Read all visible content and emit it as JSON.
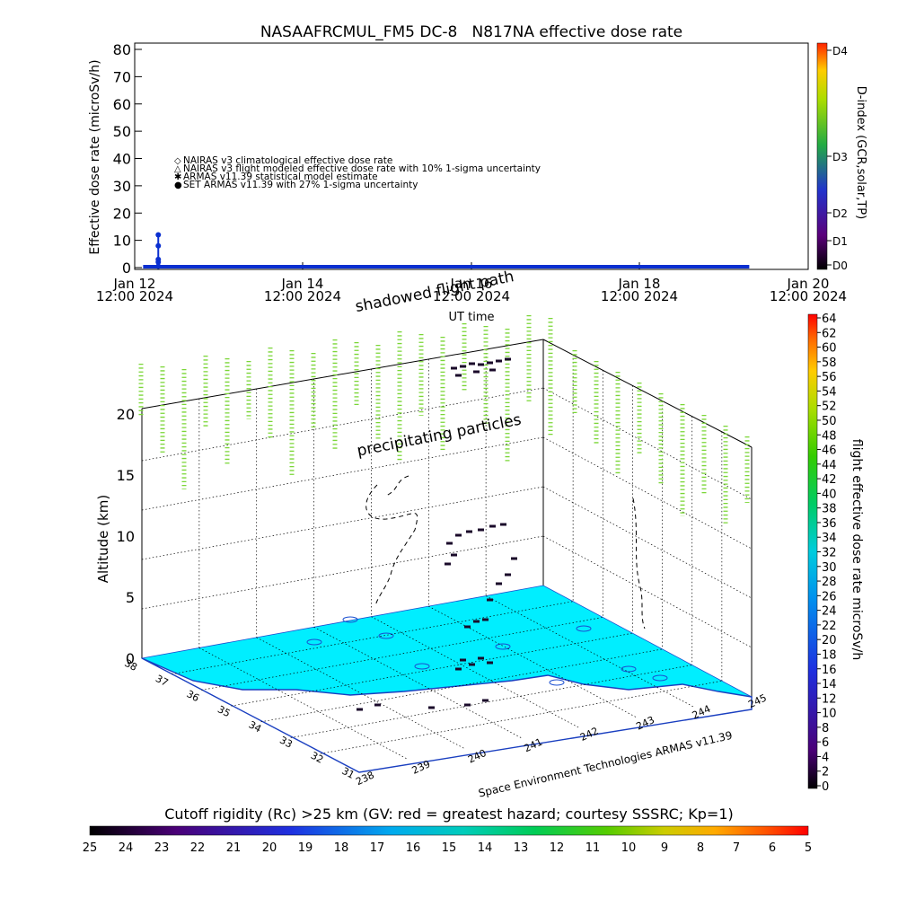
{
  "chart_data": [
    {
      "type": "line",
      "title": "NASAAFRCMUL_FM5 DC-8   N817NA effective dose rate",
      "ylabel": "Effective dose rate (microSv/h)",
      "xlabel": "UT time",
      "ylim": [
        0,
        80
      ],
      "yticks": [
        "0",
        "10",
        "20",
        "30",
        "40",
        "50",
        "60",
        "70",
        "80"
      ],
      "xticks": [
        {
          "line1": "Jan 12",
          "line2": "12:00 2024"
        },
        {
          "line1": "Jan 14",
          "line2": "12:00 2024"
        },
        {
          "line1": "Jan 16",
          "line2": "12:00 2024"
        },
        {
          "line1": "Jan 18",
          "line2": "12:00 2024"
        },
        {
          "line1": "Jan 20",
          "line2": "12:00 2024"
        }
      ],
      "legend": [
        {
          "symbol": "◇",
          "color": "#d0502a",
          "label": "NAIRAS v3 climatological effective dose rate"
        },
        {
          "symbol": "△",
          "color": "#000000",
          "label": "NAIRAS v3 flight modeled effective dose rate with 10% 1-sigma uncertainty"
        },
        {
          "symbol": "✱",
          "color": "#55dd55",
          "label": "ARMAS v11.39 statistical model estimate"
        },
        {
          "symbol": "●",
          "color": "#0a2fd0",
          "label": "SET ARMAS v11.39 with 27% 1-sigma uncertainty"
        }
      ],
      "series": [
        {
          "name": "SET ARMAS v11.39 with 27% 1-sigma uncertainty",
          "x_days": [
            0.05,
            0.1,
            0.15,
            0.17,
            0.19,
            0.21,
            7.3
          ],
          "values": [
            0,
            0.5,
            3,
            8,
            12,
            2,
            0
          ]
        }
      ],
      "right_axis": {
        "label": "D-index (GCR,solar,TP)",
        "ticks": [
          "D0",
          "D1",
          "D2",
          "D3",
          "D4"
        ]
      }
    },
    {
      "type": "scatter",
      "ylabel": "Altitude (km)",
      "zticks": [
        "0",
        "5",
        "10",
        "15",
        "20"
      ],
      "lat_ticks": [
        "38",
        "37",
        "36",
        "35",
        "34",
        "33",
        "32",
        "31"
      ],
      "lon_ticks": [
        "238",
        "239",
        "240",
        "241",
        "242",
        "243",
        "244",
        "245"
      ],
      "annotations": [
        "shadowed flight path",
        "precipitating particles"
      ],
      "credit": "Space Environment Technologies ARMAS v11.39",
      "colorbar": {
        "label": "flight effective dose rate microSv/h",
        "ticks": [
          "0",
          "2",
          "4",
          "6",
          "8",
          "10",
          "12",
          "14",
          "16",
          "18",
          "20",
          "22",
          "24",
          "26",
          "28",
          "30",
          "32",
          "34",
          "36",
          "38",
          "40",
          "42",
          "44",
          "46",
          "48",
          "50",
          "52",
          "54",
          "56",
          "58",
          "60",
          "62",
          "64"
        ]
      }
    }
  ],
  "bottom_colorbar": {
    "title": "Cutoff rigidity (Rc) >25 km (GV: red = greatest hazard; courtesy SSSRC; Kp=1)",
    "ticks": [
      "25",
      "24",
      "23",
      "22",
      "21",
      "20",
      "19",
      "18",
      "17",
      "16",
      "15",
      "14",
      "13",
      "12",
      "11",
      "10",
      "9",
      "8",
      "7",
      "6",
      "5"
    ]
  }
}
